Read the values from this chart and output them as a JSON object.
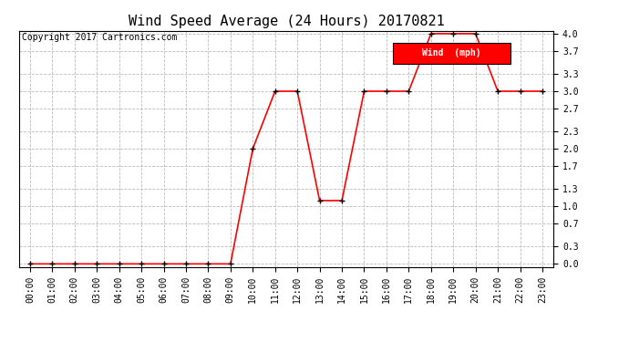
{
  "title": "Wind Speed Average (24 Hours) 20170821",
  "copyright_text": "Copyright 2017 Cartronics.com",
  "legend_label": "Wind  (mph)",
  "legend_bg": "#ff0000",
  "legend_text_color": "#ffffff",
  "x_labels": [
    "00:00",
    "01:00",
    "02:00",
    "03:00",
    "04:00",
    "05:00",
    "06:00",
    "07:00",
    "08:00",
    "09:00",
    "10:00",
    "11:00",
    "12:00",
    "13:00",
    "14:00",
    "15:00",
    "16:00",
    "17:00",
    "18:00",
    "19:00",
    "20:00",
    "21:00",
    "22:00",
    "23:00"
  ],
  "y_values": [
    0.0,
    0.0,
    0.0,
    0.0,
    0.0,
    0.0,
    0.0,
    0.0,
    0.0,
    0.0,
    2.0,
    3.0,
    3.0,
    1.1,
    1.1,
    3.0,
    3.0,
    3.0,
    4.0,
    4.0,
    4.0,
    3.0,
    3.0,
    3.0
  ],
  "y_ticks": [
    0.0,
    0.3,
    0.7,
    1.0,
    1.3,
    1.7,
    2.0,
    2.3,
    2.7,
    3.0,
    3.3,
    3.7,
    4.0
  ],
  "ylim": [
    0.0,
    4.0
  ],
  "line_color": "#ff0000",
  "marker_color": "#000000",
  "grid_color": "#bbbbbb",
  "bg_color": "#ffffff",
  "title_fontsize": 11,
  "copyright_fontsize": 7,
  "tick_fontsize": 7,
  "legend_fontsize": 7
}
